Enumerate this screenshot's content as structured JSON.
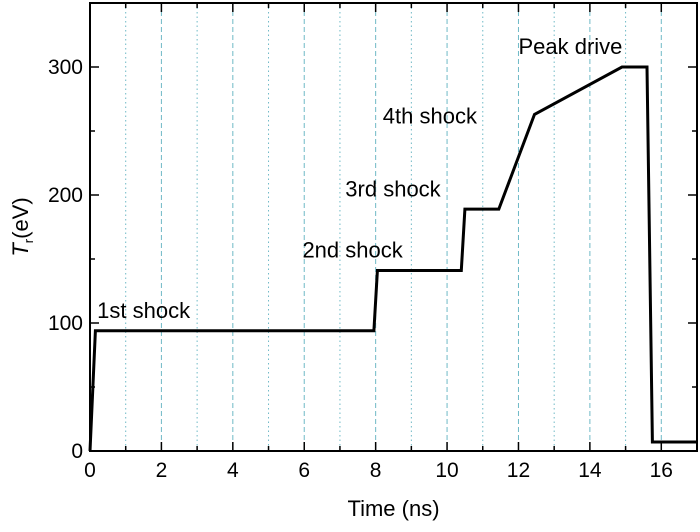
{
  "chart_data": {
    "type": "line",
    "xlabel": "Time (ns)",
    "ylabel": {
      "symbol": "T",
      "subscript": "r",
      "unit": "(eV)"
    },
    "xlim": [
      0,
      17
    ],
    "ylim": [
      0,
      350
    ],
    "xticks": [
      0,
      2,
      4,
      6,
      8,
      10,
      12,
      14,
      16
    ],
    "yticks": [
      0,
      100,
      200,
      300
    ],
    "grid": {
      "x": true,
      "y": false,
      "minor_style": "dotted",
      "major_style": "dashed",
      "color": "#6fb9c6"
    },
    "series": [
      {
        "color": "#000000",
        "x": [
          0,
          0.15,
          7.95,
          8.05,
          10.4,
          10.5,
          11.45,
          12.45,
          14.9,
          15.6,
          15.75,
          17
        ],
        "y": [
          0,
          94,
          94,
          141,
          141,
          189,
          189,
          263,
          300,
          300,
          7,
          7
        ]
      }
    ],
    "annotations": [
      {
        "text": "1st shock",
        "x": 0.2,
        "y": 104
      },
      {
        "text": "2nd shock",
        "x": 5.95,
        "y": 151
      },
      {
        "text": "3rd shock",
        "x": 7.15,
        "y": 199
      },
      {
        "text": "4th shock",
        "x": 8.2,
        "y": 256
      },
      {
        "text": "Peak drive",
        "x": 12.0,
        "y": 310
      }
    ]
  }
}
